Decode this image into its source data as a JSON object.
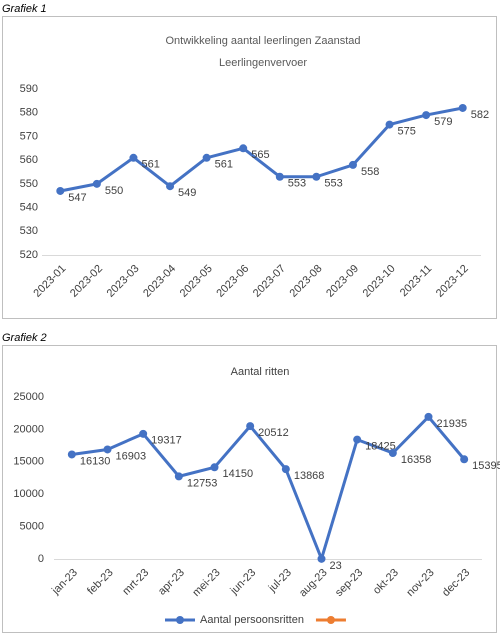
{
  "chart_data": [
    {
      "type": "line",
      "label": "Grafiek 1",
      "title": [
        "Ontwikkeling aantal leerlingen  Zaanstad",
        "Leerlingenvervoer"
      ],
      "categories": [
        "2023-01",
        "2023-02",
        "2023-03",
        "2023-04",
        "2023-05",
        "2023-06",
        "2023-07",
        "2023-08",
        "2023-09",
        "2023-10",
        "2023-11",
        "2023-12"
      ],
      "series": [
        {
          "name": null,
          "color": "#4472c4",
          "values": [
            547,
            550,
            561,
            549,
            561,
            565,
            553,
            553,
            558,
            575,
            579,
            582
          ]
        }
      ],
      "ylim": [
        520,
        590
      ],
      "yticks": [
        520,
        530,
        540,
        550,
        560,
        570,
        580,
        590
      ],
      "grid": false,
      "data_labels": true
    },
    {
      "type": "line",
      "label": "Grafiek 2",
      "title": [
        "Aantal ritten"
      ],
      "categories": [
        "jan-23",
        "feb-23",
        "mrt-23",
        "apr-23",
        "mei-23",
        "jun-23",
        "jul-23",
        "aug-23",
        "sep-23",
        "okt-23",
        "nov-23",
        "dec-23"
      ],
      "series": [
        {
          "name": "Aantal persoonsritten",
          "color": "#4472c4",
          "values": [
            16130,
            16903,
            19317,
            12753,
            14150,
            20512,
            13868,
            23,
            18425,
            16358,
            21935,
            15395
          ]
        },
        {
          "name": null,
          "color": "#ed7d31",
          "values": [
            null,
            null,
            null,
            null,
            null,
            null,
            null,
            null,
            null,
            null,
            null,
            null
          ]
        }
      ],
      "ylim": [
        0,
        25000
      ],
      "yticks": [
        0,
        5000,
        10000,
        15000,
        20000,
        25000
      ],
      "grid": false,
      "data_labels": true,
      "legend": "bottom"
    }
  ]
}
